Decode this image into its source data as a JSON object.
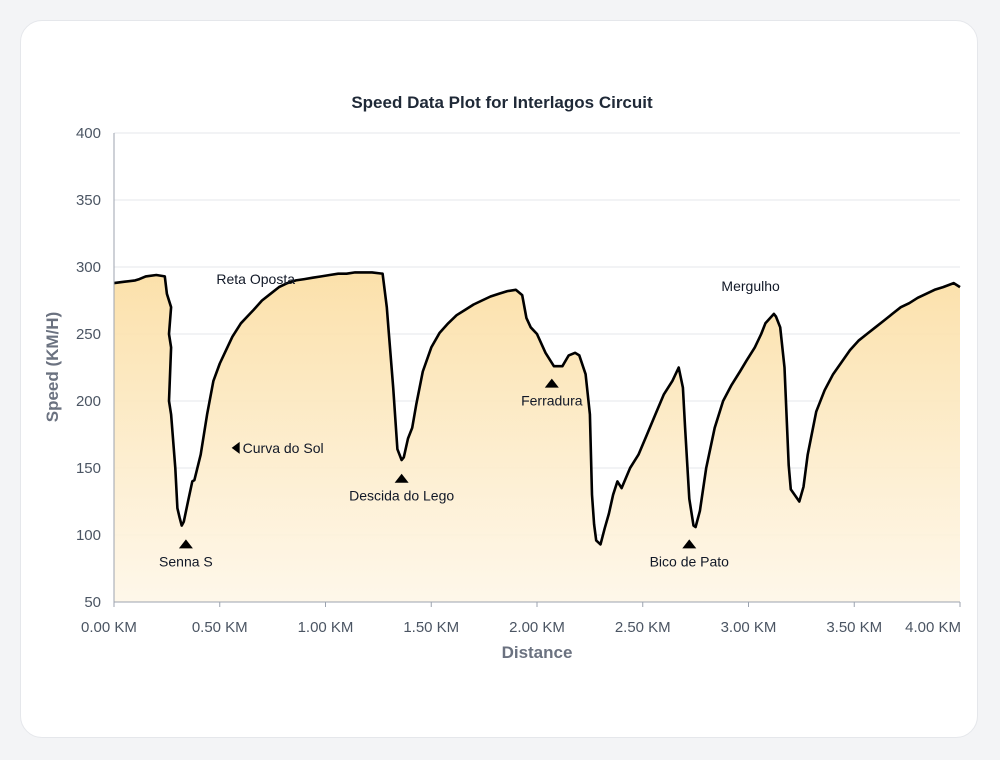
{
  "chart_data": {
    "type": "area",
    "title": "Speed Data Plot for Interlagos Circuit",
    "xlabel": "Distance",
    "ylabel": "Speed (KM/H)",
    "xlim": [
      0,
      4.0
    ],
    "ylim": [
      50,
      400
    ],
    "xticks": [
      {
        "value": 0.0,
        "label": "0.00 KM"
      },
      {
        "value": 0.5,
        "label": "0.50 KM"
      },
      {
        "value": 1.0,
        "label": "1.00 KM"
      },
      {
        "value": 1.5,
        "label": "1.50 KM"
      },
      {
        "value": 2.0,
        "label": "2.00 KM"
      },
      {
        "value": 2.5,
        "label": "2.50 KM"
      },
      {
        "value": 3.0,
        "label": "3.00 KM"
      },
      {
        "value": 3.5,
        "label": "3.50 KM"
      },
      {
        "value": 4.0,
        "label": "4.00 KM"
      }
    ],
    "yticks": [
      50,
      100,
      150,
      200,
      250,
      300,
      350,
      400
    ],
    "grid": true,
    "colors": {
      "line": "#000000",
      "fill_top": "#fbdfa6",
      "fill_bottom": "#fef6e6",
      "grid": "#e5e7eb"
    },
    "x": [
      0.0,
      0.05,
      0.1,
      0.12,
      0.15,
      0.2,
      0.24,
      0.25,
      0.27,
      0.26,
      0.27,
      0.26,
      0.27,
      0.29,
      0.3,
      0.31,
      0.32,
      0.33,
      0.35,
      0.37,
      0.38,
      0.41,
      0.44,
      0.47,
      0.5,
      0.53,
      0.56,
      0.6,
      0.63,
      0.66,
      0.7,
      0.74,
      0.78,
      0.82,
      0.86,
      0.9,
      0.94,
      0.98,
      1.02,
      1.06,
      1.1,
      1.14,
      1.18,
      1.22,
      1.27,
      1.29,
      1.3,
      1.32,
      1.34,
      1.36,
      1.37,
      1.38,
      1.39,
      1.41,
      1.43,
      1.46,
      1.5,
      1.54,
      1.58,
      1.62,
      1.66,
      1.7,
      1.74,
      1.78,
      1.82,
      1.86,
      1.9,
      1.93,
      1.95,
      1.97,
      2.0,
      2.04,
      2.08,
      2.12,
      2.15,
      2.18,
      2.2,
      2.23,
      2.25,
      2.26,
      2.27,
      2.28,
      2.3,
      2.32,
      2.34,
      2.36,
      2.38,
      2.4,
      2.44,
      2.48,
      2.52,
      2.56,
      2.6,
      2.64,
      2.67,
      2.69,
      2.7,
      2.72,
      2.74,
      2.75,
      2.77,
      2.8,
      2.84,
      2.88,
      2.92,
      2.96,
      2.99,
      3.03,
      3.06,
      3.08,
      3.12,
      3.13,
      3.15,
      3.17,
      3.19,
      3.2,
      3.24,
      3.26,
      3.28,
      3.32,
      3.36,
      3.4,
      3.44,
      3.48,
      3.52,
      3.56,
      3.6,
      3.64,
      3.68,
      3.72,
      3.76,
      3.8,
      3.84,
      3.88,
      3.92,
      3.97,
      4.0
    ],
    "y": [
      288,
      289,
      290,
      291,
      293,
      294,
      293,
      280,
      270,
      250,
      240,
      200,
      190,
      150,
      120,
      113,
      107,
      110,
      125,
      140,
      141,
      160,
      190,
      215,
      228,
      238,
      248,
      258,
      263,
      268,
      275,
      280,
      285,
      288,
      290,
      291,
      292,
      293,
      294,
      295,
      295,
      296,
      296,
      296,
      295,
      270,
      250,
      210,
      164,
      156,
      158,
      165,
      172,
      180,
      198,
      222,
      240,
      251,
      258,
      264,
      268,
      272,
      275,
      278,
      280,
      282,
      283,
      279,
      262,
      255,
      250,
      236,
      226,
      226,
      234,
      236,
      234,
      220,
      190,
      130,
      108,
      96,
      93,
      105,
      116,
      130,
      140,
      135,
      150,
      160,
      175,
      190,
      205,
      215,
      225,
      210,
      180,
      127,
      107,
      106,
      118,
      150,
      180,
      200,
      212,
      222,
      230,
      240,
      250,
      258,
      265,
      263,
      255,
      225,
      152,
      134,
      125,
      136,
      160,
      192,
      208,
      220,
      229,
      238,
      245,
      250,
      255,
      260,
      265,
      270,
      273,
      277,
      280,
      283,
      285,
      288,
      285
    ],
    "annotations": [
      {
        "text": "Reta Oposta",
        "x": 0.67,
        "y": 291,
        "marker": "none"
      },
      {
        "text": "Curva do Sol",
        "x": 0.58,
        "y": 165,
        "marker": "left"
      },
      {
        "text": "Senna S",
        "x": 0.34,
        "y": 93,
        "marker": "up"
      },
      {
        "text": "Descida do Lego",
        "x": 1.36,
        "y": 142,
        "marker": "up"
      },
      {
        "text": "Ferradura",
        "x": 2.07,
        "y": 213,
        "marker": "up"
      },
      {
        "text": "Bico de Pato",
        "x": 2.72,
        "y": 93,
        "marker": "up"
      },
      {
        "text": "Mergulho",
        "x": 3.01,
        "y": 286,
        "marker": "none"
      }
    ]
  }
}
